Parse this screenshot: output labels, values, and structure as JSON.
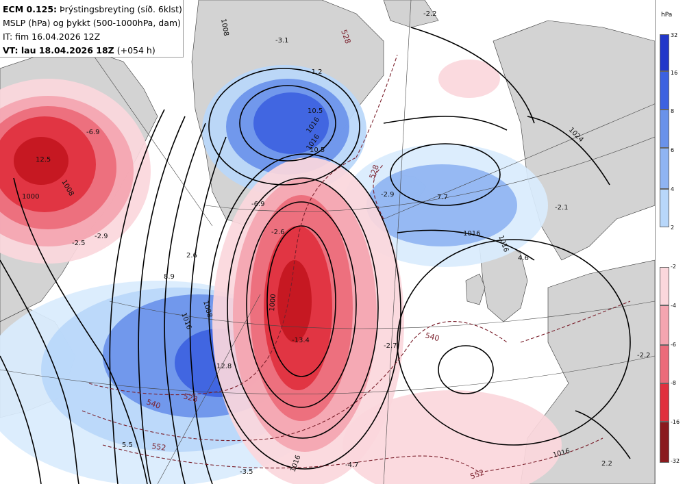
{
  "header": {
    "model": "ECM 0.125:",
    "field_title": "Þrýstingsbreyting (síð. 6klst)",
    "line2": "MSLP (hPa) og þykkt (500-1000hPa, dam)",
    "line3": "IT: fim 16.04.2026 12Z",
    "vt_prefix": "VT: lau 18.04.2026 18Z",
    "vt_suffix": "(+054 h)"
  },
  "legend": {
    "unit": "hPa",
    "rising": [
      {
        "label": "32",
        "color": "#2237c9"
      },
      {
        "label": "16",
        "color": "#3d62e0"
      },
      {
        "label": "8",
        "color": "#6a92ea"
      },
      {
        "label": "6",
        "color": "#8fb4f2"
      },
      {
        "label": "4",
        "color": "#b8d7fa"
      },
      {
        "label": "2",
        "color": "#d9ecfd"
      }
    ],
    "falling": [
      {
        "label": "-2",
        "color": "#fbd7dc"
      },
      {
        "label": "-4",
        "color": "#f4a5b0"
      },
      {
        "label": "-6",
        "color": "#eb6b7a"
      },
      {
        "label": "-8",
        "color": "#e0303e"
      },
      {
        "label": "-16",
        "color": "#c3161f"
      },
      {
        "label": "-32",
        "color": "#8a1a1e"
      }
    ]
  },
  "map": {
    "colors": {
      "land": "#d3d3d3",
      "isobar": "#000000",
      "thickness": "#7a1f2b",
      "ocean": "#ffffff"
    },
    "isobar_labels": [
      "1008",
      "1016",
      "1008",
      "1000",
      "1008",
      "1016",
      "1016",
      "1016",
      "1000",
      "1016",
      "1016",
      "1024",
      "1016"
    ],
    "thickness_labels": [
      "528",
      "528",
      "540",
      "528",
      "552",
      "540",
      "552"
    ],
    "change_values": [
      "-3.1",
      "-1.2",
      "10.5",
      "10.5",
      "-6.9",
      "12.5",
      "-2.6",
      "-6.9",
      "-2.5",
      "-2.9",
      "7.7",
      "-2.1",
      "-2.9",
      "2.6",
      "8.9",
      "4.6",
      "-13.4",
      "12.8",
      "-2.7",
      "-2.2",
      "5.5",
      "-3.5",
      "-4.7",
      "2.2",
      "-2.2"
    ]
  }
}
